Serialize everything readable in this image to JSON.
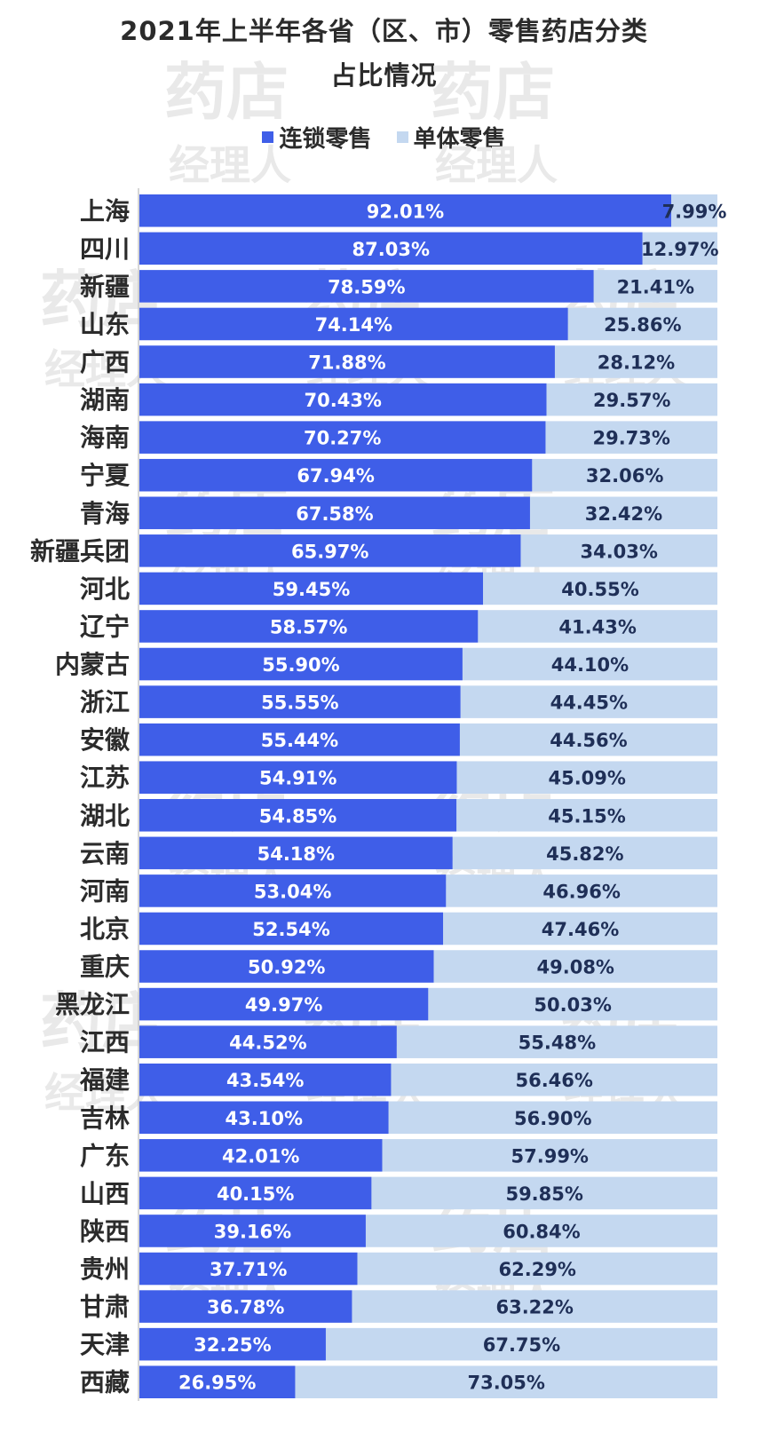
{
  "title_line1": "2021年上半年各省（区、市）零售药店分类",
  "title_line2": "占比情况",
  "watermark": {
    "line1": "药店",
    "line2": "经理人"
  },
  "colors": {
    "chain": "#3f5ee8",
    "single": "#c4d8f0"
  },
  "chart_data": {
    "type": "bar",
    "orientation": "horizontal",
    "stacked": true,
    "title": "2021年上半年各省（区、市）零售药店分类占比情况",
    "legend_position": "top",
    "xlim": [
      0,
      100
    ],
    "categories": [
      "上海",
      "四川",
      "新疆",
      "山东",
      "广西",
      "湖南",
      "海南",
      "宁夏",
      "青海",
      "新疆兵团",
      "河北",
      "辽宁",
      "内蒙古",
      "浙江",
      "安徽",
      "江苏",
      "湖北",
      "云南",
      "河南",
      "北京",
      "重庆",
      "黑龙江",
      "江西",
      "福建",
      "吉林",
      "广东",
      "山西",
      "陕西",
      "贵州",
      "甘肃",
      "天津",
      "西藏"
    ],
    "series": [
      {
        "name": "连锁零售",
        "values": [
          92.01,
          87.03,
          78.59,
          74.14,
          71.88,
          70.43,
          70.27,
          67.94,
          67.58,
          65.97,
          59.45,
          58.57,
          55.9,
          55.55,
          55.44,
          54.91,
          54.85,
          54.18,
          53.04,
          52.54,
          50.92,
          49.97,
          44.52,
          43.54,
          43.1,
          42.01,
          40.15,
          39.16,
          37.71,
          36.78,
          32.25,
          26.95
        ],
        "labels": [
          "92.01%",
          "87.03%",
          "78.59%",
          "74.14%",
          "71.88%",
          "70.43%",
          "70.27%",
          "67.94%",
          "67.58%",
          "65.97%",
          "59.45%",
          "58.57%",
          "55.90%",
          "55.55%",
          "55.44%",
          "54.91%",
          "54.85%",
          "54.18%",
          "53.04%",
          "52.54%",
          "50.92%",
          "49.97%",
          "44.52%",
          "43.54%",
          "43.10%",
          "42.01%",
          "40.15%",
          "39.16%",
          "37.71%",
          "36.78%",
          "32.25%",
          "26.95%"
        ]
      },
      {
        "name": "单体零售",
        "values": [
          7.99,
          12.97,
          21.41,
          25.86,
          28.12,
          29.57,
          29.73,
          32.06,
          32.42,
          34.03,
          40.55,
          41.43,
          44.1,
          44.45,
          44.56,
          45.09,
          45.15,
          45.82,
          46.96,
          47.46,
          49.08,
          50.03,
          55.48,
          56.46,
          56.9,
          57.99,
          59.85,
          60.84,
          62.29,
          63.22,
          67.75,
          73.05
        ],
        "labels": [
          "7.99%",
          "12.97%",
          "21.41%",
          "25.86%",
          "28.12%",
          "29.57%",
          "29.73%",
          "32.06%",
          "32.42%",
          "34.03%",
          "40.55%",
          "41.43%",
          "44.10%",
          "44.45%",
          "44.56%",
          "45.09%",
          "45.15%",
          "45.82%",
          "46.96%",
          "47.46%",
          "49.08%",
          "50.03%",
          "55.48%",
          "56.46%",
          "56.90%",
          "57.99%",
          "59.85%",
          "60.84%",
          "62.29%",
          "63.22%",
          "67.75%",
          "73.05%"
        ]
      }
    ]
  }
}
